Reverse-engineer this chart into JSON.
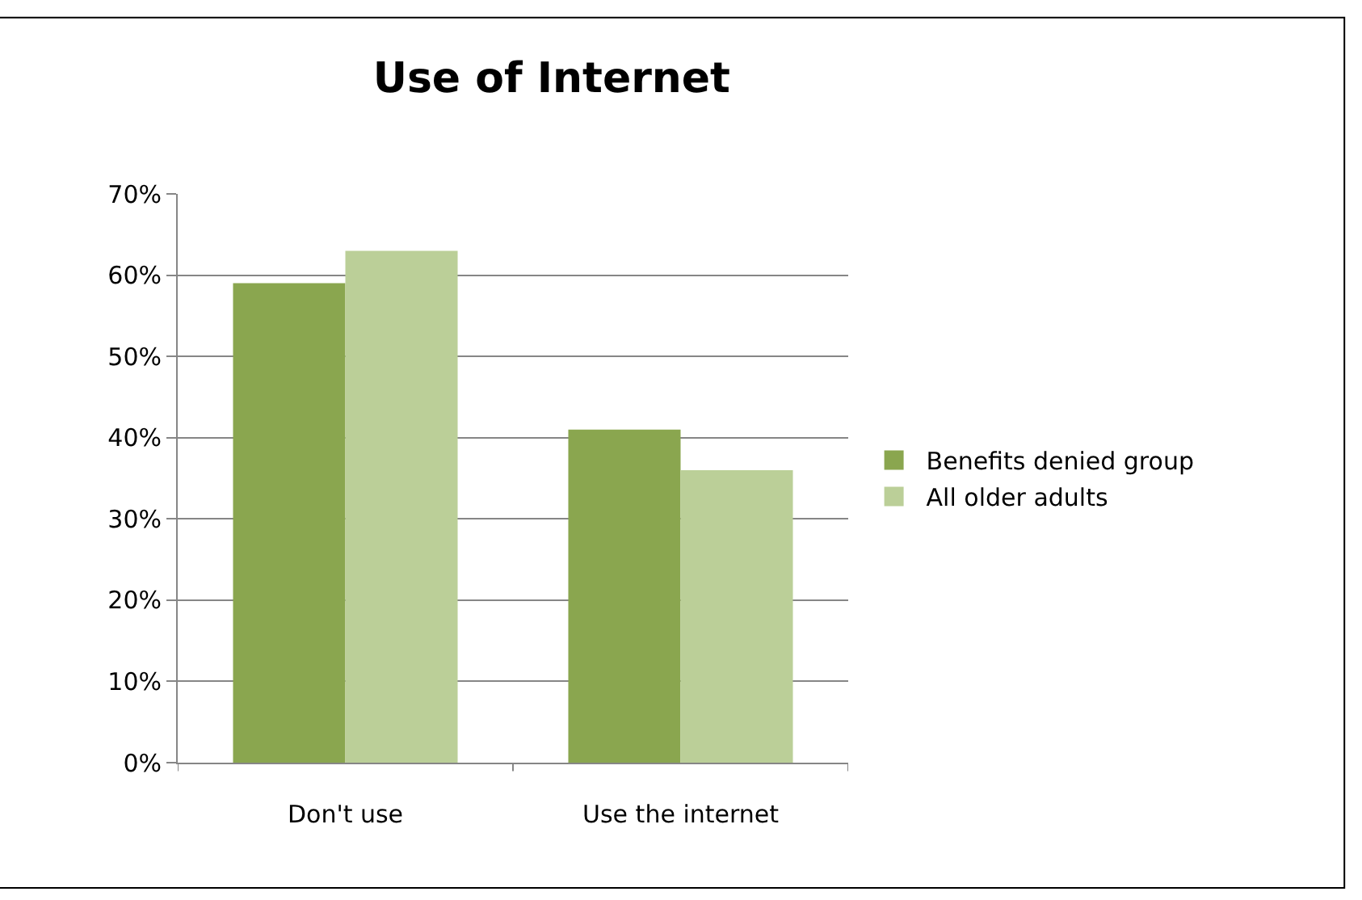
{
  "chart_data": {
    "type": "bar",
    "title": "Use of Internet",
    "categories": [
      "Don't use",
      "Use the internet"
    ],
    "series": [
      {
        "name": "Benefits denied group",
        "color": "#8aa64f",
        "values": [
          59,
          41
        ]
      },
      {
        "name": "All older adults",
        "color": "#bbcf98",
        "values": [
          63,
          36
        ]
      }
    ],
    "ylim": [
      0,
      70
    ],
    "yticks": [
      {
        "value": 0,
        "label": "0%"
      },
      {
        "value": 10,
        "label": "10%"
      },
      {
        "value": 20,
        "label": "20%"
      },
      {
        "value": 30,
        "label": "30%"
      },
      {
        "value": 40,
        "label": "40%"
      },
      {
        "value": 50,
        "label": "50%"
      },
      {
        "value": 60,
        "label": "60%"
      },
      {
        "value": 70,
        "label": "70%"
      }
    ],
    "grid": "y",
    "legend": "right"
  }
}
